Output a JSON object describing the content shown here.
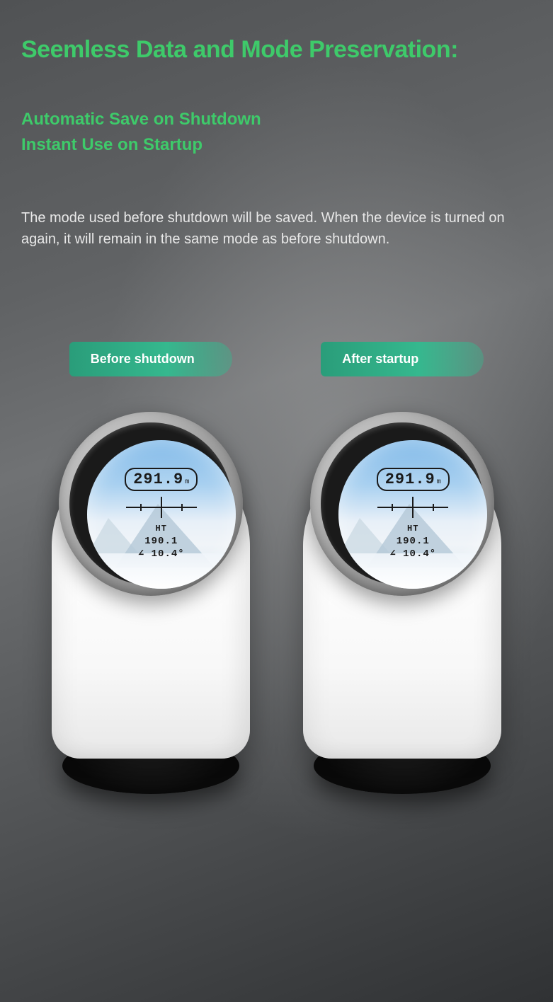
{
  "title": "Seemless Data and Mode Preservation:",
  "subtitle_line1": "Automatic Save on Shutdown",
  "subtitle_line2": "Instant Use on Startup",
  "description": "The mode used before shutdown will be saved. When the device is turned on again, it will remain in the same mode as before shutdown.",
  "colors": {
    "accent_green": "#3eca6a",
    "text_light": "#e8e8e8",
    "pill_bg": "#2a9d7a"
  },
  "devices": [
    {
      "label": "Before shutdown",
      "reading_main": "291.9",
      "reading_unit": "m",
      "mode": "HT",
      "reading_secondary": "190.1",
      "reading_angle": "∠ 10.4°"
    },
    {
      "label": "After startup",
      "reading_main": "291.9",
      "reading_unit": "m",
      "mode": "HT",
      "reading_secondary": "190.1",
      "reading_angle": "∠ 10.4°"
    }
  ]
}
